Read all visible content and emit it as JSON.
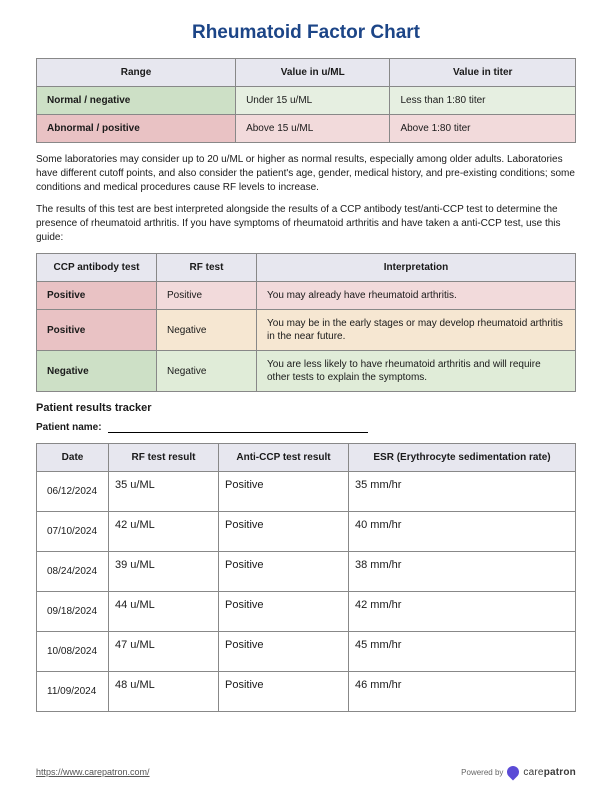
{
  "title": "Rheumatoid Factor Chart",
  "table1": {
    "headers": [
      "Range",
      "Value in u/ML",
      "Value in titer"
    ],
    "rows": [
      {
        "range": "Normal / negative",
        "uml": "Under 15 u/ML",
        "titer": "Less than 1:80 titer",
        "row_class": "row-green"
      },
      {
        "range": "Abnormal / positive",
        "uml": "Above 15 u/ML",
        "titer": "Above 1:80 titer",
        "row_class": "row-red"
      }
    ]
  },
  "para1": "Some laboratories may consider up to 20 u/ML or higher as normal results, especially among older adults. Laboratories have different cutoff points, and also consider the patient's age, gender, medical history, and pre-existing conditions; some conditions and medical procedures cause RF levels to increase.",
  "para2": "The results of this test are best interpreted alongside the results of a CCP antibody test/anti-CCP test to determine the presence of rheumatoid arthritis. If you have symptoms of rheumatoid arthritis and have taken a anti-CCP test, use this guide:",
  "table2": {
    "headers": [
      "CCP antibody test",
      "RF test",
      "Interpretation"
    ],
    "col_widths": [
      "120px",
      "100px",
      "auto"
    ],
    "rows": [
      {
        "ccp": "Positive",
        "rf": "Positive",
        "interp": "You may already have rheumatoid arthritis.",
        "row_class": "row-red"
      },
      {
        "ccp": "Positive",
        "rf": "Negative",
        "interp": "You may be in the early stages or may develop rheumatoid arthritis in the near future.",
        "row_class": "row-orange"
      },
      {
        "ccp": "Negative",
        "rf": "Negative",
        "interp": "You are less likely to have rheumatoid arthritis and will require other tests to explain the symptoms.",
        "row_class": "row-green2"
      }
    ]
  },
  "tracker": {
    "section_title": "Patient results tracker",
    "name_label": "Patient name:",
    "headers": [
      "Date",
      "RF test result",
      "Anti-CCP test result",
      "ESR (Erythrocyte sedimentation rate)"
    ],
    "rows": [
      {
        "date": "06/12/2024",
        "rf": "35 u/ML",
        "ccp": "Positive",
        "esr": "35 mm/hr"
      },
      {
        "date": "07/10/2024",
        "rf": "42 u/ML",
        "ccp": "Positive",
        "esr": "40 mm/hr"
      },
      {
        "date": "08/24/2024",
        "rf": "39 u/ML",
        "ccp": "Positive",
        "esr": "38 mm/hr"
      },
      {
        "date": "09/18/2024",
        "rf": "44 u/ML",
        "ccp": "Positive",
        "esr": "42 mm/hr"
      },
      {
        "date": "10/08/2024",
        "rf": "47 u/ML",
        "ccp": "Positive",
        "esr": "45 mm/hr"
      },
      {
        "date": "11/09/2024",
        "rf": "48 u/ML",
        "ccp": "Positive",
        "esr": "46 mm/hr"
      }
    ]
  },
  "footer": {
    "url": "https://www.carepatron.com/",
    "powered_label": "Powered by",
    "brand_light": "care",
    "brand_bold": "patron"
  },
  "colors": {
    "title": "#1c4587",
    "header_bg": "#e7e7ef",
    "green_dark": "#cde0c6",
    "green_light": "#e6efe1",
    "red_dark": "#e9c2c4",
    "red_light": "#f2dadb",
    "orange_light": "#f6e7d2",
    "border": "#888888",
    "logo": "#5b4bd6"
  }
}
